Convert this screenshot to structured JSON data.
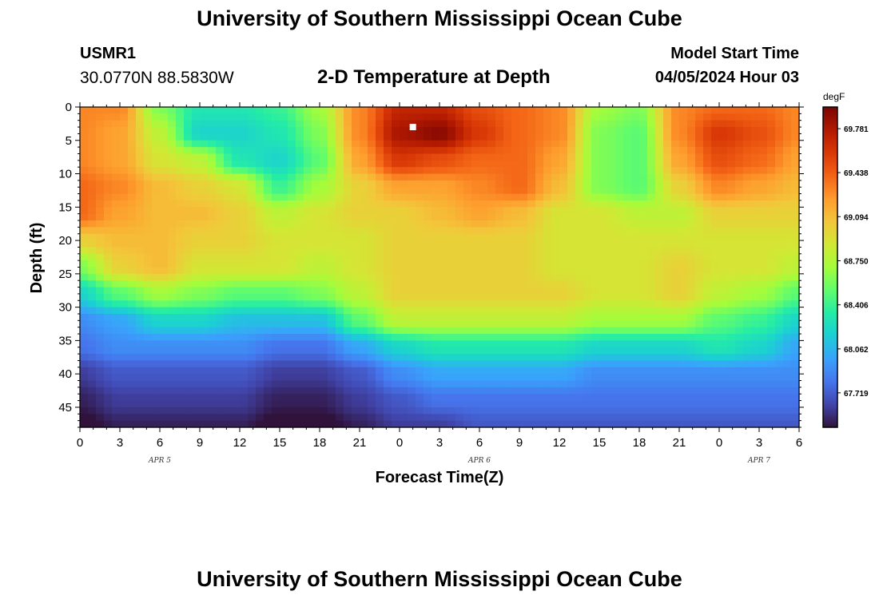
{
  "header": {
    "title": "University of Southern Mississippi Ocean Cube",
    "station_id": "USMR1",
    "coordinates": "30.0770N  88.5830W",
    "subtitle": "2-D Temperature at Depth",
    "model_start_label": "Model Start Time",
    "model_start_time": "04/05/2024 Hour 03"
  },
  "footer": {
    "title": "University of Southern Mississippi Ocean Cube"
  },
  "colors": {
    "colormap": [
      "#30123b",
      "#4145ab",
      "#4675ed",
      "#39a2fc",
      "#1bcfd4",
      "#24eca6",
      "#61fc6c",
      "#a4fc3b",
      "#d1e834",
      "#f3c63a",
      "#fe9b2d",
      "#f36315",
      "#d93806",
      "#b11901",
      "#7a0402"
    ],
    "marker": "#ffffff"
  },
  "chart_data": {
    "type": "heatmap",
    "title": "2-D Temperature at Depth",
    "xlabel": "Forecast Time(Z)",
    "ylabel": "Depth (ft)",
    "colorbar_unit": "degF",
    "x_ticks": [
      "0",
      "3",
      "6",
      "9",
      "12",
      "15",
      "18",
      "21",
      "0",
      "3",
      "6",
      "9",
      "12",
      "15",
      "18",
      "21",
      "0",
      "3",
      "6"
    ],
    "date_labels": [
      {
        "label": "APR 5",
        "hour": 6
      },
      {
        "label": "APR 6",
        "hour": 30
      },
      {
        "label": "APR 7",
        "hour": 51
      }
    ],
    "x_range_hours": [
      0,
      54
    ],
    "y_ticks": [
      "0",
      "5",
      "10",
      "15",
      "20",
      "25",
      "30",
      "35",
      "40",
      "45"
    ],
    "y_range": [
      0,
      48
    ],
    "colorbar_ticks": [
      "69.781",
      "69.438",
      "69.094",
      "68.750",
      "68.406",
      "68.062",
      "67.719"
    ],
    "colorbar_range": [
      67.45,
      69.95
    ],
    "marker": {
      "hour": 25,
      "depth": 3
    },
    "x_hours": [
      0,
      3,
      6,
      9,
      12,
      15,
      18,
      21,
      24,
      27,
      30,
      33,
      36,
      39,
      42,
      45,
      48,
      51,
      54
    ],
    "depths": [
      0,
      4,
      8,
      12,
      16,
      20,
      24,
      28,
      32,
      36,
      40,
      44,
      48
    ],
    "values": [
      [
        69.3,
        69.3,
        68.6,
        68.3,
        68.3,
        68.4,
        68.7,
        69.3,
        69.7,
        69.7,
        69.5,
        69.4,
        69.3,
        68.7,
        68.6,
        69.3,
        69.4,
        69.4,
        69.3
      ],
      [
        69.3,
        69.2,
        68.8,
        68.2,
        68.2,
        68.3,
        68.6,
        69.3,
        69.8,
        69.9,
        69.6,
        69.4,
        69.3,
        68.6,
        68.5,
        69.3,
        69.6,
        69.5,
        69.3
      ],
      [
        69.3,
        69.2,
        68.9,
        68.8,
        68.3,
        68.2,
        68.5,
        69.2,
        69.6,
        69.5,
        69.4,
        69.4,
        69.2,
        68.6,
        68.5,
        69.2,
        69.5,
        69.4,
        69.2
      ],
      [
        69.4,
        69.3,
        69.1,
        69.0,
        68.9,
        68.4,
        68.7,
        69.0,
        69.2,
        69.2,
        69.3,
        69.4,
        69.1,
        68.6,
        68.5,
        69.0,
        69.3,
        69.2,
        69.1
      ],
      [
        69.4,
        69.2,
        69.1,
        69.1,
        69.0,
        68.8,
        68.9,
        69.0,
        69.0,
        69.1,
        69.2,
        69.1,
        68.9,
        68.9,
        68.8,
        68.8,
        69.0,
        69.0,
        69.0
      ],
      [
        69.0,
        69.1,
        69.1,
        69.0,
        69.0,
        68.9,
        68.9,
        68.9,
        69.0,
        69.0,
        69.0,
        69.0,
        68.9,
        68.9,
        68.9,
        68.9,
        68.9,
        68.9,
        68.9
      ],
      [
        68.6,
        69.0,
        69.1,
        68.9,
        68.9,
        68.9,
        68.8,
        68.9,
        69.0,
        69.0,
        69.0,
        69.0,
        68.9,
        68.9,
        68.9,
        69.0,
        68.9,
        68.9,
        68.8
      ],
      [
        68.2,
        68.5,
        68.7,
        68.6,
        68.5,
        68.5,
        68.6,
        68.8,
        69.0,
        69.0,
        69.0,
        69.0,
        69.0,
        68.9,
        68.9,
        69.0,
        68.8,
        68.7,
        68.5
      ],
      [
        67.9,
        68.0,
        68.2,
        68.2,
        68.1,
        68.1,
        68.1,
        68.5,
        68.8,
        68.8,
        68.8,
        68.8,
        68.8,
        68.7,
        68.7,
        68.7,
        68.5,
        68.4,
        68.2
      ],
      [
        67.8,
        67.9,
        67.9,
        67.9,
        67.9,
        67.8,
        67.8,
        68.0,
        68.2,
        68.3,
        68.3,
        68.3,
        68.3,
        68.2,
        68.2,
        68.2,
        68.3,
        68.2,
        68.0
      ],
      [
        67.6,
        67.7,
        67.7,
        67.7,
        67.7,
        67.6,
        67.6,
        67.7,
        67.9,
        68.0,
        68.0,
        68.0,
        68.0,
        67.9,
        67.9,
        67.9,
        67.9,
        67.9,
        67.9
      ],
      [
        67.5,
        67.6,
        67.6,
        67.6,
        67.6,
        67.5,
        67.5,
        67.6,
        67.7,
        67.8,
        67.8,
        67.8,
        67.8,
        67.8,
        67.8,
        67.8,
        67.8,
        67.8,
        67.8
      ],
      [
        67.4,
        67.5,
        67.5,
        67.5,
        67.5,
        67.4,
        67.4,
        67.5,
        67.6,
        67.6,
        67.7,
        67.7,
        67.7,
        67.7,
        67.7,
        67.7,
        67.7,
        67.7,
        67.7
      ]
    ]
  }
}
